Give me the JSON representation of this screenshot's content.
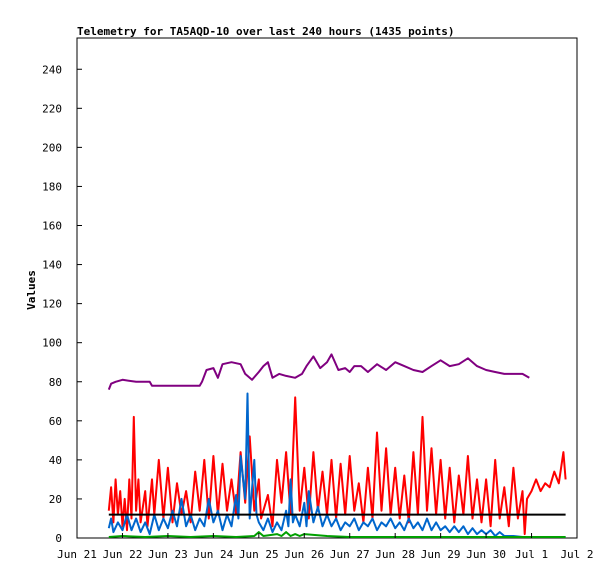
{
  "chart_data": {
    "type": "line",
    "title": "Telemetry for TA5AQD-10 over last 240 hours (1435 points)",
    "ylabel": "Values",
    "xlabel": "",
    "x_tick_labels": [
      "Jun 21",
      "Jun 22",
      "Jun 23",
      "Jun 24",
      "Jun 25",
      "Jun 26",
      "Jun 27",
      "Jun 28",
      "Jun 29",
      "Jun 30",
      "Jul 1",
      "Jul 2"
    ],
    "y_ticks": [
      0,
      20,
      40,
      60,
      80,
      100,
      120,
      140,
      160,
      180,
      200,
      220,
      240
    ],
    "xlim_days": [
      0,
      11
    ],
    "ylim": [
      0,
      256
    ],
    "grid": false,
    "legend": "none",
    "series": [
      {
        "color": "#800080",
        "points": [
          [
            0.7,
            76
          ],
          [
            0.75,
            79
          ],
          [
            0.85,
            80
          ],
          [
            1.0,
            81
          ],
          [
            1.3,
            80
          ],
          [
            1.6,
            80
          ],
          [
            1.65,
            78
          ],
          [
            2.0,
            78
          ],
          [
            2.5,
            78
          ],
          [
            2.7,
            78
          ],
          [
            2.75,
            80
          ],
          [
            2.85,
            86
          ],
          [
            3.0,
            87
          ],
          [
            3.1,
            82
          ],
          [
            3.2,
            89
          ],
          [
            3.4,
            90
          ],
          [
            3.6,
            89
          ],
          [
            3.7,
            84
          ],
          [
            3.85,
            81
          ],
          [
            4.0,
            85
          ],
          [
            4.1,
            88
          ],
          [
            4.2,
            90
          ],
          [
            4.3,
            82
          ],
          [
            4.45,
            84
          ],
          [
            4.6,
            83
          ],
          [
            4.8,
            82
          ],
          [
            4.95,
            84
          ],
          [
            5.05,
            88
          ],
          [
            5.2,
            93
          ],
          [
            5.35,
            87
          ],
          [
            5.5,
            90
          ],
          [
            5.6,
            94
          ],
          [
            5.75,
            86
          ],
          [
            5.9,
            87
          ],
          [
            6.0,
            85
          ],
          [
            6.1,
            88
          ],
          [
            6.25,
            88
          ],
          [
            6.4,
            85
          ],
          [
            6.6,
            89
          ],
          [
            6.8,
            86
          ],
          [
            7.0,
            90
          ],
          [
            7.2,
            88
          ],
          [
            7.4,
            86
          ],
          [
            7.6,
            85
          ],
          [
            7.8,
            88
          ],
          [
            8.0,
            91
          ],
          [
            8.2,
            88
          ],
          [
            8.4,
            89
          ],
          [
            8.6,
            92
          ],
          [
            8.8,
            88
          ],
          [
            9.0,
            86
          ],
          [
            9.2,
            85
          ],
          [
            9.4,
            84
          ],
          [
            9.6,
            84
          ],
          [
            9.8,
            84
          ],
          [
            9.95,
            82
          ]
        ]
      },
      {
        "color": "#ff0000",
        "points": [
          [
            0.7,
            14
          ],
          [
            0.75,
            26
          ],
          [
            0.8,
            8
          ],
          [
            0.85,
            30
          ],
          [
            0.9,
            12
          ],
          [
            0.95,
            24
          ],
          [
            1.0,
            6
          ],
          [
            1.05,
            20
          ],
          [
            1.1,
            4
          ],
          [
            1.15,
            30
          ],
          [
            1.2,
            10
          ],
          [
            1.25,
            62
          ],
          [
            1.3,
            14
          ],
          [
            1.35,
            30
          ],
          [
            1.4,
            8
          ],
          [
            1.5,
            24
          ],
          [
            1.55,
            6
          ],
          [
            1.65,
            30
          ],
          [
            1.7,
            12
          ],
          [
            1.8,
            40
          ],
          [
            1.9,
            10
          ],
          [
            2.0,
            36
          ],
          [
            2.1,
            8
          ],
          [
            2.2,
            28
          ],
          [
            2.3,
            12
          ],
          [
            2.4,
            24
          ],
          [
            2.5,
            8
          ],
          [
            2.6,
            34
          ],
          [
            2.7,
            14
          ],
          [
            2.8,
            40
          ],
          [
            2.9,
            10
          ],
          [
            3.0,
            42
          ],
          [
            3.1,
            12
          ],
          [
            3.2,
            38
          ],
          [
            3.3,
            14
          ],
          [
            3.4,
            30
          ],
          [
            3.5,
            12
          ],
          [
            3.6,
            44
          ],
          [
            3.7,
            18
          ],
          [
            3.8,
            52
          ],
          [
            3.9,
            14
          ],
          [
            4.0,
            30
          ],
          [
            4.05,
            10
          ],
          [
            4.2,
            22
          ],
          [
            4.3,
            6
          ],
          [
            4.4,
            40
          ],
          [
            4.5,
            18
          ],
          [
            4.6,
            44
          ],
          [
            4.7,
            12
          ],
          [
            4.8,
            72
          ],
          [
            4.9,
            14
          ],
          [
            5.0,
            36
          ],
          [
            5.1,
            10
          ],
          [
            5.2,
            44
          ],
          [
            5.3,
            14
          ],
          [
            5.4,
            34
          ],
          [
            5.5,
            12
          ],
          [
            5.6,
            40
          ],
          [
            5.7,
            10
          ],
          [
            5.8,
            38
          ],
          [
            5.9,
            12
          ],
          [
            6.0,
            42
          ],
          [
            6.1,
            14
          ],
          [
            6.2,
            28
          ],
          [
            6.3,
            8
          ],
          [
            6.4,
            36
          ],
          [
            6.5,
            10
          ],
          [
            6.6,
            54
          ],
          [
            6.7,
            14
          ],
          [
            6.8,
            46
          ],
          [
            6.9,
            12
          ],
          [
            7.0,
            36
          ],
          [
            7.1,
            10
          ],
          [
            7.2,
            32
          ],
          [
            7.3,
            8
          ],
          [
            7.4,
            44
          ],
          [
            7.5,
            12
          ],
          [
            7.6,
            62
          ],
          [
            7.7,
            14
          ],
          [
            7.8,
            46
          ],
          [
            7.9,
            12
          ],
          [
            8.0,
            40
          ],
          [
            8.1,
            10
          ],
          [
            8.2,
            36
          ],
          [
            8.3,
            8
          ],
          [
            8.4,
            32
          ],
          [
            8.5,
            12
          ],
          [
            8.6,
            42
          ],
          [
            8.7,
            10
          ],
          [
            8.8,
            30
          ],
          [
            8.9,
            8
          ],
          [
            9.0,
            30
          ],
          [
            9.1,
            6
          ],
          [
            9.2,
            40
          ],
          [
            9.3,
            10
          ],
          [
            9.4,
            26
          ],
          [
            9.5,
            6
          ],
          [
            9.6,
            36
          ],
          [
            9.7,
            10
          ],
          [
            9.8,
            24
          ],
          [
            9.85,
            2
          ],
          [
            9.9,
            20
          ],
          [
            10.0,
            24
          ],
          [
            10.1,
            30
          ],
          [
            10.2,
            24
          ],
          [
            10.3,
            28
          ],
          [
            10.4,
            26
          ],
          [
            10.5,
            34
          ],
          [
            10.6,
            28
          ],
          [
            10.7,
            44
          ],
          [
            10.75,
            30
          ]
        ]
      },
      {
        "color": "#0066cc",
        "points": [
          [
            0.7,
            5
          ],
          [
            0.75,
            10
          ],
          [
            0.8,
            3
          ],
          [
            0.9,
            8
          ],
          [
            1.0,
            4
          ],
          [
            1.1,
            12
          ],
          [
            1.2,
            4
          ],
          [
            1.3,
            10
          ],
          [
            1.4,
            3
          ],
          [
            1.5,
            8
          ],
          [
            1.6,
            2
          ],
          [
            1.7,
            12
          ],
          [
            1.8,
            4
          ],
          [
            1.9,
            10
          ],
          [
            2.0,
            5
          ],
          [
            2.1,
            14
          ],
          [
            2.2,
            6
          ],
          [
            2.3,
            20
          ],
          [
            2.4,
            6
          ],
          [
            2.5,
            12
          ],
          [
            2.6,
            4
          ],
          [
            2.7,
            10
          ],
          [
            2.8,
            6
          ],
          [
            2.9,
            20
          ],
          [
            3.0,
            8
          ],
          [
            3.1,
            14
          ],
          [
            3.2,
            4
          ],
          [
            3.3,
            12
          ],
          [
            3.4,
            6
          ],
          [
            3.5,
            22
          ],
          [
            3.55,
            10
          ],
          [
            3.6,
            42
          ],
          [
            3.7,
            20
          ],
          [
            3.75,
            74
          ],
          [
            3.8,
            10
          ],
          [
            3.9,
            40
          ],
          [
            3.95,
            12
          ],
          [
            4.0,
            8
          ],
          [
            4.1,
            4
          ],
          [
            4.2,
            10
          ],
          [
            4.3,
            3
          ],
          [
            4.4,
            8
          ],
          [
            4.5,
            4
          ],
          [
            4.6,
            14
          ],
          [
            4.65,
            6
          ],
          [
            4.7,
            30
          ],
          [
            4.75,
            8
          ],
          [
            4.8,
            12
          ],
          [
            4.9,
            6
          ],
          [
            5.0,
            18
          ],
          [
            5.05,
            6
          ],
          [
            5.1,
            24
          ],
          [
            5.2,
            8
          ],
          [
            5.3,
            16
          ],
          [
            5.4,
            6
          ],
          [
            5.5,
            12
          ],
          [
            5.6,
            6
          ],
          [
            5.7,
            10
          ],
          [
            5.8,
            4
          ],
          [
            5.9,
            8
          ],
          [
            6.0,
            6
          ],
          [
            6.1,
            10
          ],
          [
            6.2,
            4
          ],
          [
            6.3,
            8
          ],
          [
            6.4,
            6
          ],
          [
            6.5,
            10
          ],
          [
            6.6,
            4
          ],
          [
            6.7,
            8
          ],
          [
            6.8,
            6
          ],
          [
            6.9,
            10
          ],
          [
            7.0,
            5
          ],
          [
            7.1,
            8
          ],
          [
            7.2,
            4
          ],
          [
            7.3,
            10
          ],
          [
            7.4,
            5
          ],
          [
            7.5,
            8
          ],
          [
            7.6,
            4
          ],
          [
            7.7,
            10
          ],
          [
            7.8,
            4
          ],
          [
            7.9,
            8
          ],
          [
            8.0,
            4
          ],
          [
            8.1,
            6
          ],
          [
            8.2,
            3
          ],
          [
            8.3,
            6
          ],
          [
            8.4,
            3
          ],
          [
            8.5,
            6
          ],
          [
            8.6,
            2
          ],
          [
            8.7,
            5
          ],
          [
            8.8,
            2
          ],
          [
            8.9,
            4
          ],
          [
            9.0,
            2
          ],
          [
            9.1,
            4
          ],
          [
            9.2,
            1
          ],
          [
            9.3,
            3
          ],
          [
            9.4,
            1
          ],
          [
            9.6,
            1
          ],
          [
            9.8,
            0.5
          ],
          [
            10.0,
            0.5
          ],
          [
            10.5,
            0.5
          ],
          [
            10.75,
            0.5
          ]
        ]
      },
      {
        "color": "#00a000",
        "points": [
          [
            0.7,
            0.5
          ],
          [
            1.0,
            1
          ],
          [
            1.5,
            0.5
          ],
          [
            2.0,
            1
          ],
          [
            2.5,
            0.5
          ],
          [
            3.0,
            1
          ],
          [
            3.5,
            0.5
          ],
          [
            3.9,
            1
          ],
          [
            4.0,
            3
          ],
          [
            4.1,
            1
          ],
          [
            4.4,
            2
          ],
          [
            4.5,
            1
          ],
          [
            4.6,
            3
          ],
          [
            4.7,
            1
          ],
          [
            4.8,
            2
          ],
          [
            4.9,
            1
          ],
          [
            5.0,
            2
          ],
          [
            5.5,
            1
          ],
          [
            6.0,
            0.5
          ],
          [
            7.0,
            0.5
          ],
          [
            8.0,
            0.5
          ],
          [
            9.0,
            0.5
          ],
          [
            10.0,
            0.5
          ],
          [
            10.75,
            0.5
          ]
        ]
      },
      {
        "color": "#000000",
        "points": [
          [
            0.7,
            12
          ],
          [
            10.75,
            12
          ]
        ]
      }
    ]
  }
}
